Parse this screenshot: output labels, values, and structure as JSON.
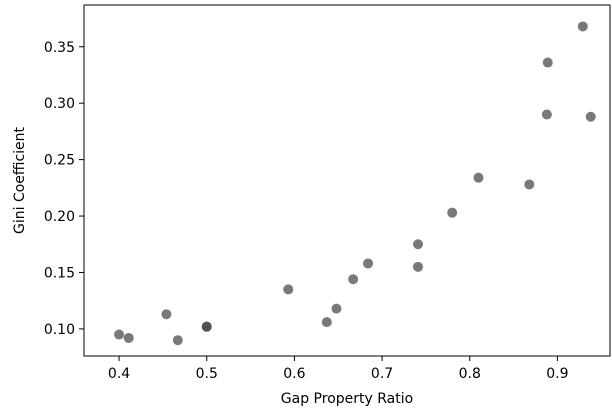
{
  "chart_data": {
    "type": "scatter",
    "title": "",
    "xlabel": "Gap Property Ratio",
    "ylabel": "Gini Coefficient",
    "xlim": [
      0.36,
      0.96
    ],
    "ylim": [
      0.076,
      0.387
    ],
    "xticks": [
      0.4,
      0.5,
      0.6,
      0.7,
      0.8,
      0.9
    ],
    "xtick_labels": [
      "0.4",
      "0.5",
      "0.6",
      "0.7",
      "0.8",
      "0.9"
    ],
    "yticks": [
      0.1,
      0.15,
      0.2,
      0.25,
      0.3,
      0.35
    ],
    "ytick_labels": [
      "0.10",
      "0.15",
      "0.20",
      "0.25",
      "0.30",
      "0.35"
    ],
    "grid": false,
    "marker_color": "#404040",
    "marker_opacity": 0.7,
    "series": [
      {
        "x": [
          0.4,
          0.411,
          0.454,
          0.467,
          0.5,
          0.5,
          0.593,
          0.637,
          0.648,
          0.667,
          0.684,
          0.741,
          0.741,
          0.78,
          0.81,
          0.868,
          0.888,
          0.889,
          0.929,
          0.938
        ],
        "y": [
          0.095,
          0.092,
          0.113,
          0.09,
          0.102,
          0.102,
          0.135,
          0.106,
          0.118,
          0.144,
          0.158,
          0.155,
          0.175,
          0.203,
          0.234,
          0.228,
          0.29,
          0.336,
          0.368,
          0.288
        ]
      }
    ]
  }
}
